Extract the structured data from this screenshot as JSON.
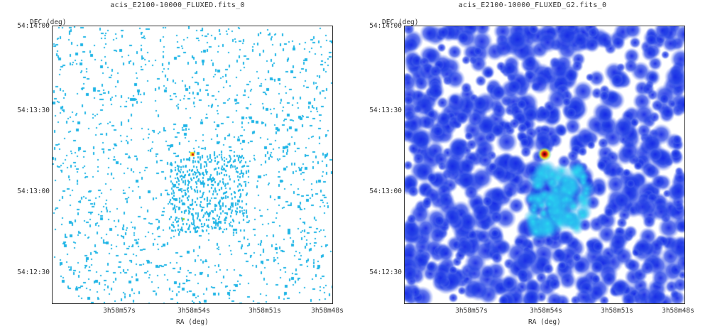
{
  "panels": [
    {
      "title": "acis_E2100-10000_FLUXED.fits_0",
      "ylabel": "DEC (deg)",
      "xlabel": "RA (deg)",
      "yticks": [
        "54:14:00",
        "54:13:30",
        "54:13:00",
        "54:12:30"
      ],
      "xticks": [
        "3h58m57s",
        "3h58m54s",
        "3h58m51s",
        "3h58m48s"
      ],
      "image": "sparse-photon-count-map"
    },
    {
      "title": "acis_E2100-10000_FLUXED_G2.fits_0",
      "ylabel": "DEC (deg)",
      "xlabel": "RA (deg)",
      "yticks": [
        "54:14:00",
        "54:13:30",
        "54:13:00",
        "54:12:30"
      ],
      "xticks": [
        "3h58m57s",
        "3h58m54s",
        "3h58m51s",
        "3h58m48s"
      ],
      "image": "gaussian-smoothed-map"
    }
  ],
  "colors": {
    "pixel_cyan": "#1fb5e6",
    "smooth_blue": "#1a2ae6",
    "smooth_cyan": "#22ccf0",
    "hotspot_red": "#e01010",
    "hotspot_yellow": "#f0e020"
  }
}
